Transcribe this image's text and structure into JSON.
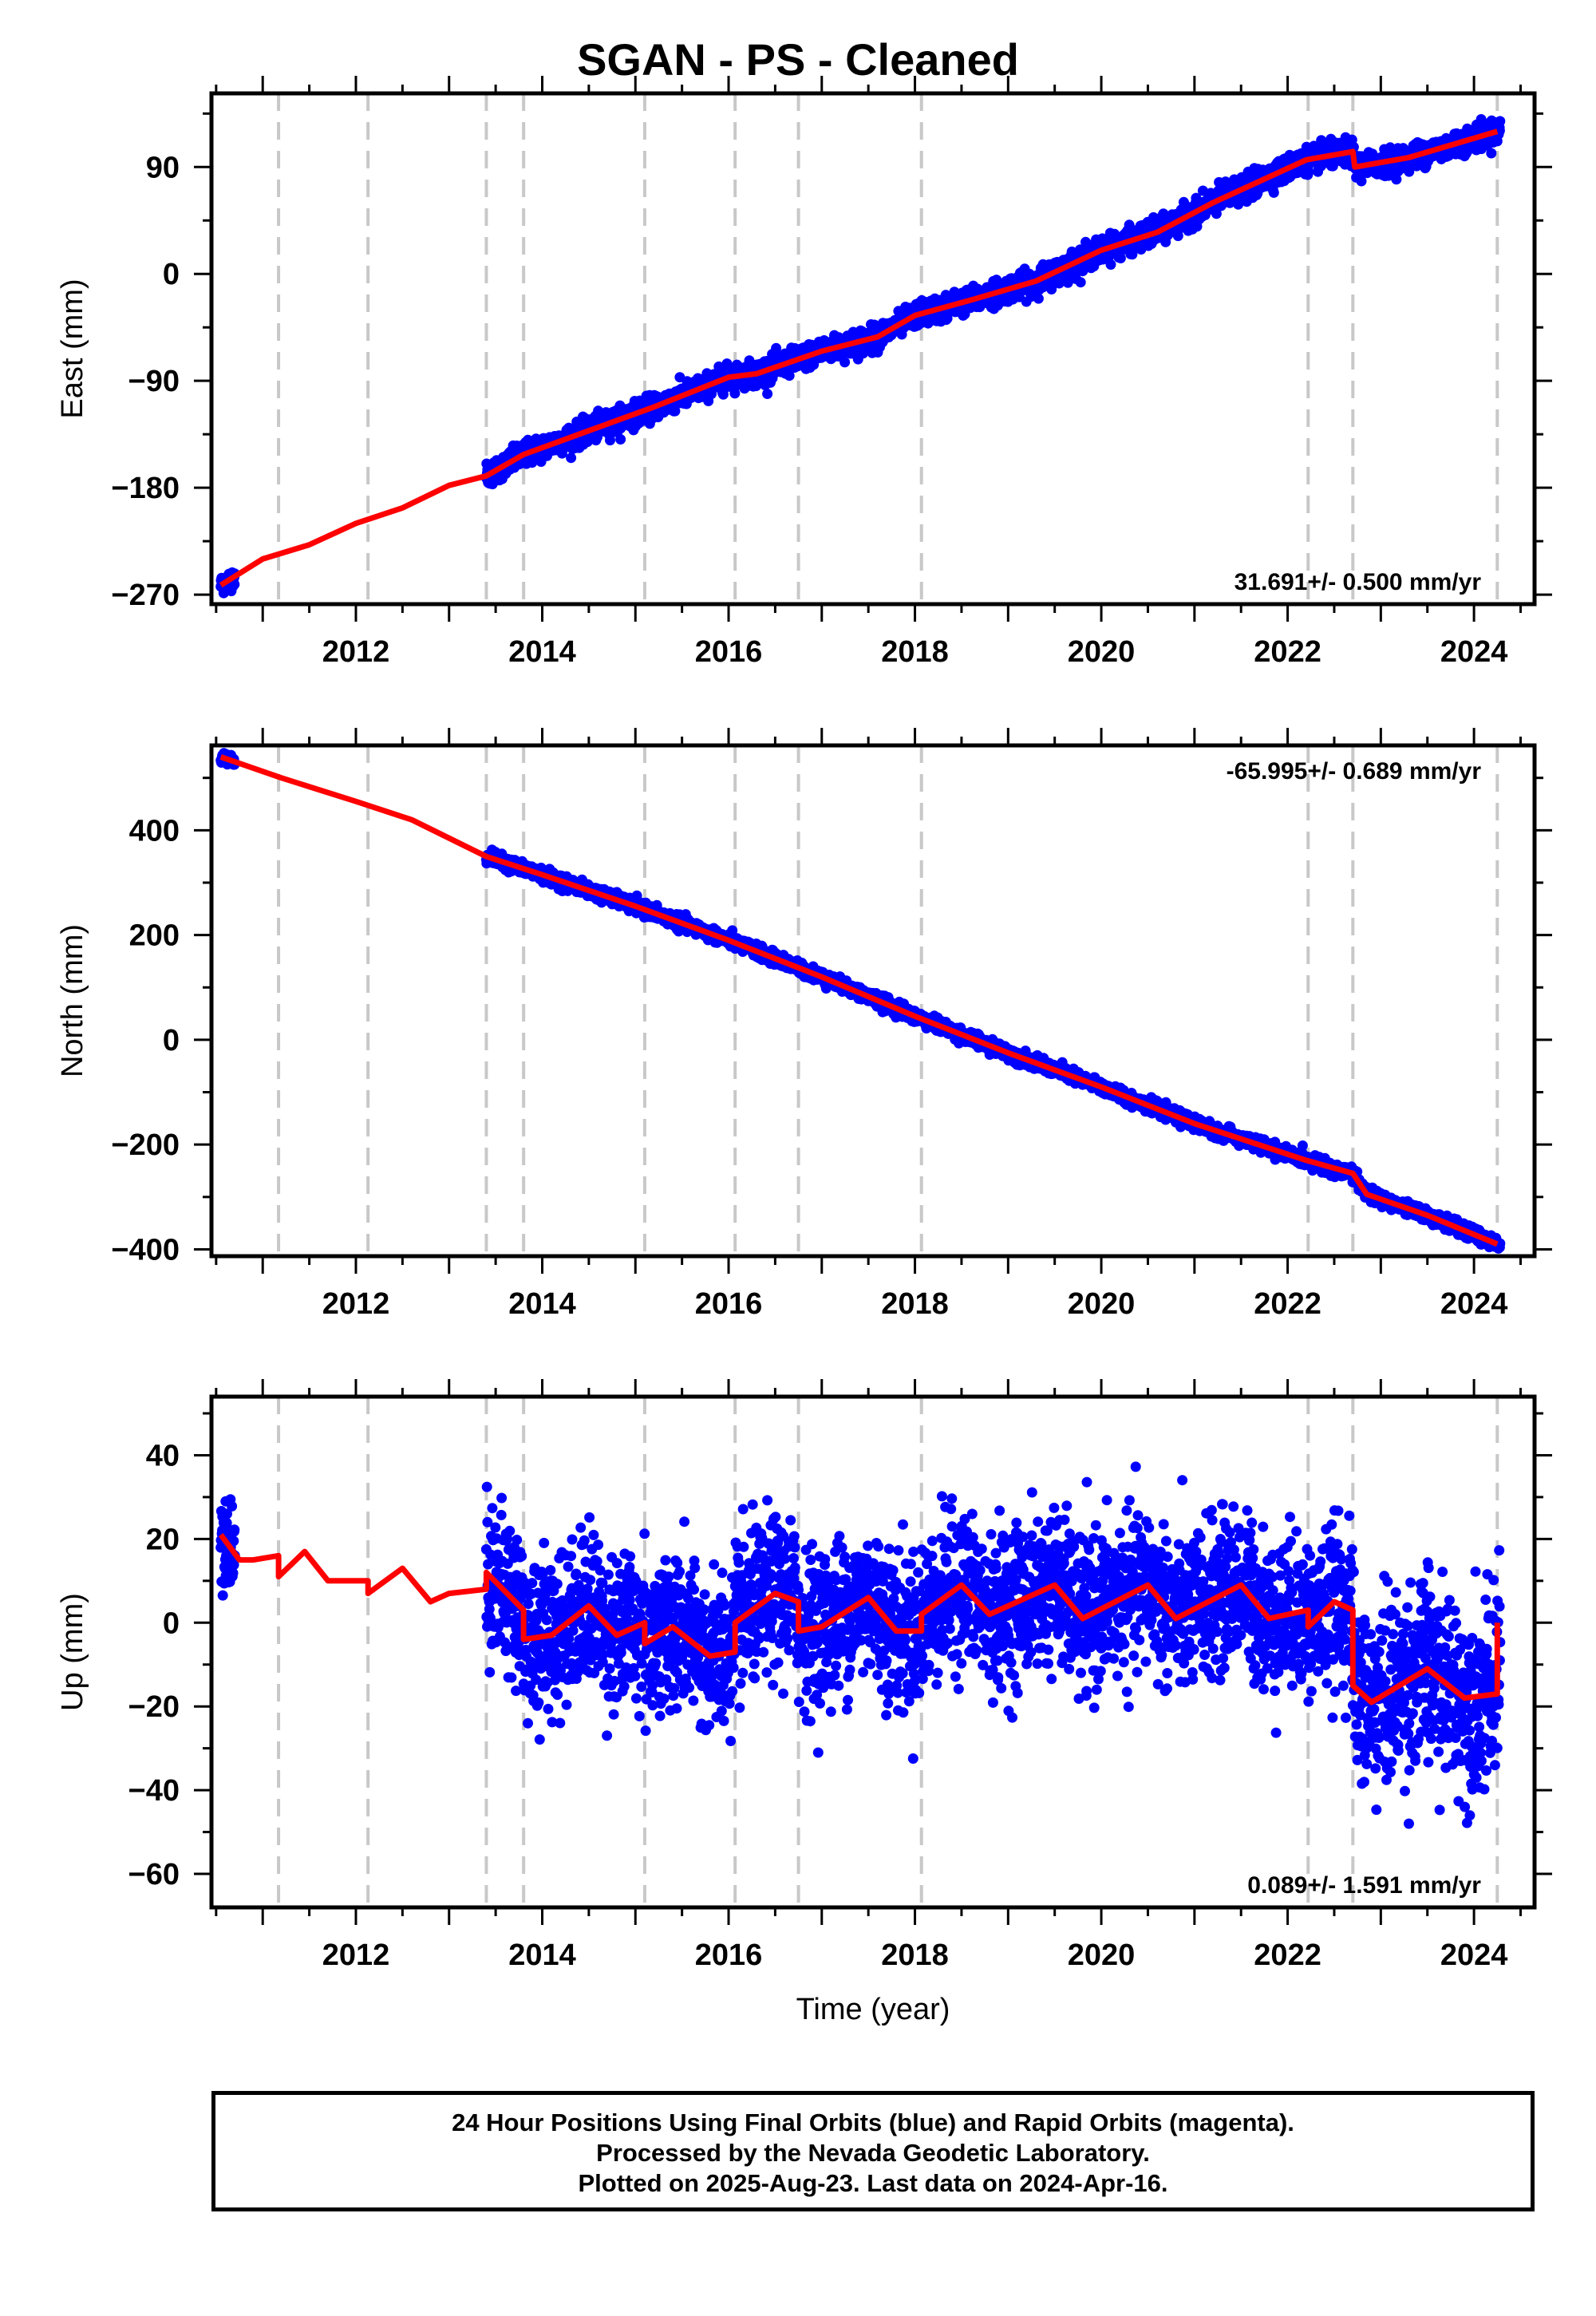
{
  "title": "SGAN  - PS - Cleaned",
  "colors": {
    "data": "#0000ff",
    "model": "#ff0000",
    "event": "#c8c8c8",
    "frame": "#000000"
  },
  "footer": {
    "line1": "24 Hour Positions Using Final Orbits (blue) and Rapid Orbits (magenta).",
    "line2": "Processed by the Nevada Geodetic Laboratory.",
    "line3": "Plotted on 2025-Aug-23. Last data on 2024-Apr-16."
  },
  "chart_data": [
    {
      "type": "scatter",
      "component": "east",
      "ylabel": "East (mm)",
      "xlabel": "",
      "xlim": [
        2010.45,
        2024.65
      ],
      "ylim": [
        -278,
        152
      ],
      "yticks": [
        -270,
        -180,
        -90,
        0,
        90
      ],
      "xticks": [
        2012,
        2014,
        2016,
        2018,
        2020,
        2022,
        2024
      ],
      "event_lines": [
        2011.17,
        2012.13,
        2013.4,
        2013.8,
        2015.1,
        2016.07,
        2016.75,
        2018.07,
        2022.22,
        2022.7,
        2024.25
      ],
      "rate": "31.691+/- 0.500 mm/yr",
      "rate_position": "bottom-right",
      "model_x": [
        2010.55,
        2011.0,
        2011.5,
        2012.0,
        2012.5,
        2013.0,
        2013.4,
        2013.8,
        2014.5,
        2015.2,
        2016.0,
        2016.3,
        2017.0,
        2017.6,
        2018.0,
        2018.6,
        2019.3,
        2020.0,
        2020.6,
        2021.2,
        2022.2,
        2022.7,
        2022.72,
        2023.3,
        2024.25
      ],
      "model_y": [
        -262,
        -240,
        -228,
        -210,
        -197,
        -178,
        -170,
        -152,
        -132,
        -112,
        -87,
        -84,
        -65,
        -53,
        -35,
        -22,
        -6,
        20,
        35,
        60,
        96,
        103,
        90,
        98,
        120
      ],
      "data_segments": [
        {
          "x_start": 2010.55,
          "x_end": 2010.7,
          "noise": 4
        },
        {
          "x_start": 2013.4,
          "x_end": 2024.28,
          "noise": 5
        }
      ]
    },
    {
      "type": "scatter",
      "component": "north",
      "ylabel": "North (mm)",
      "xlabel": "",
      "xlim": [
        2010.45,
        2024.65
      ],
      "ylim": [
        -413,
        562
      ],
      "yticks": [
        -400,
        -200,
        0,
        200,
        400
      ],
      "xticks": [
        2012,
        2014,
        2016,
        2018,
        2020,
        2022,
        2024
      ],
      "event_lines": [
        2011.17,
        2012.13,
        2013.4,
        2013.8,
        2015.1,
        2016.07,
        2016.75,
        2018.07,
        2022.22,
        2022.7,
        2024.25
      ],
      "rate": "-65.995+/- 0.689 mm/yr",
      "rate_position": "top-right",
      "model_x": [
        2010.55,
        2011.2,
        2012.0,
        2012.6,
        2013.4,
        2014.0,
        2015.0,
        2016.0,
        2017.0,
        2018.0,
        2019.0,
        2020.0,
        2021.0,
        2022.2,
        2022.7,
        2022.85,
        2023.5,
        2024.25
      ],
      "model_y": [
        540,
        500,
        455,
        420,
        350,
        315,
        255,
        190,
        120,
        45,
        -25,
        -90,
        -160,
        -230,
        -255,
        -295,
        -335,
        -390
      ],
      "data_segments": [
        {
          "x_start": 2010.55,
          "x_end": 2010.7,
          "noise": 6
        },
        {
          "x_start": 2013.4,
          "x_end": 2024.28,
          "noise": 6
        }
      ]
    },
    {
      "type": "scatter",
      "component": "up",
      "ylabel": "Up (mm)",
      "xlabel": "Time (year)",
      "xlim": [
        2010.45,
        2024.65
      ],
      "ylim": [
        -68,
        54
      ],
      "yticks": [
        -60,
        -40,
        -20,
        0,
        20,
        40
      ],
      "xticks": [
        2012,
        2014,
        2016,
        2018,
        2020,
        2022,
        2024
      ],
      "event_lines": [
        2011.17,
        2012.13,
        2013.4,
        2013.8,
        2015.1,
        2016.07,
        2016.75,
        2018.07,
        2022.22,
        2022.7,
        2024.25
      ],
      "rate": "0.089+/- 1.591 mm/yr",
      "rate_position": "bottom-right",
      "model_x": [
        2010.55,
        2010.75,
        2010.9,
        2011.17,
        2011.17,
        2011.45,
        2011.7,
        2012.13,
        2012.13,
        2012.5,
        2012.8,
        2013.0,
        2013.4,
        2013.4,
        2013.8,
        2013.8,
        2014.1,
        2014.5,
        2014.8,
        2015.1,
        2015.1,
        2015.4,
        2015.8,
        2016.07,
        2016.07,
        2016.5,
        2016.75,
        2016.75,
        2017.0,
        2017.5,
        2017.8,
        2018.07,
        2018.07,
        2018.5,
        2018.8,
        2019.5,
        2019.8,
        2020.5,
        2020.8,
        2021.5,
        2021.8,
        2022.22,
        2022.22,
        2022.5,
        2022.7,
        2022.7,
        2022.9,
        2023.5,
        2023.9,
        2024.25,
        2024.25
      ],
      "model_y": [
        21,
        15,
        15,
        16,
        11,
        17,
        10,
        10,
        7,
        13,
        5,
        7,
        8,
        12,
        3,
        -4,
        -3,
        4,
        -3,
        0,
        -5,
        -1,
        -8,
        -7,
        0,
        7,
        5,
        -2,
        -1,
        6,
        -2,
        -2,
        2,
        9,
        2,
        9,
        1,
        9,
        1,
        9,
        1,
        3,
        -1,
        5,
        3,
        -15,
        -19,
        -11,
        -18,
        -17,
        0
      ],
      "data_segments": [
        {
          "x_start": 2010.55,
          "x_end": 2010.7,
          "noise": 6
        },
        {
          "x_start": 2013.4,
          "x_end": 2024.28,
          "noise": 9
        }
      ]
    }
  ]
}
